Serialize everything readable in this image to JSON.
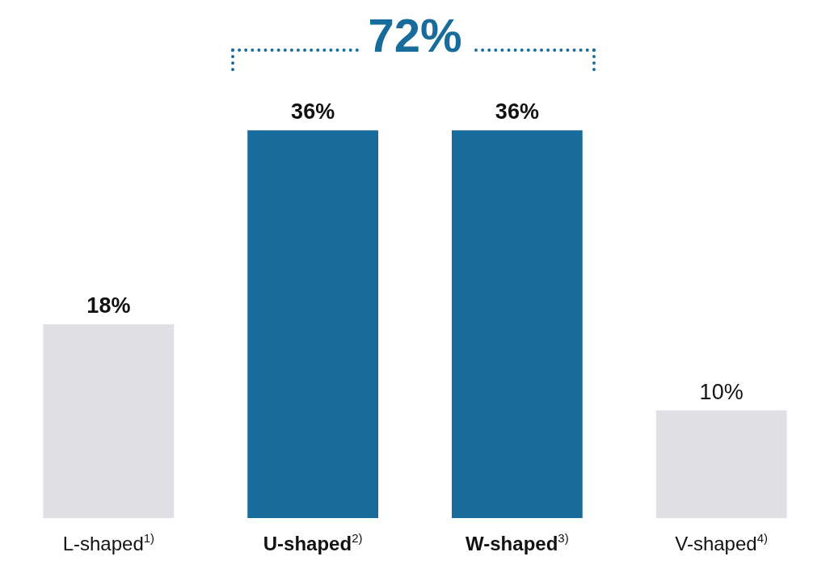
{
  "chart_data": {
    "type": "bar",
    "categories": [
      "L-shaped$^{1)}$",
      "U-shaped$^{2)}$",
      "W-shaped$^{3)}$",
      "V-shaped$^{4)}$"
    ],
    "values": [
      18,
      36,
      36,
      10
    ],
    "colors": [
      "#e0e0e4",
      "#186c9c",
      "#186c9c",
      "#e0e0e4"
    ],
    "value_labels": [
      "18%",
      "36%",
      "36%",
      "10%"
    ],
    "annotations": [
      "72%"
    ]
  }
}
